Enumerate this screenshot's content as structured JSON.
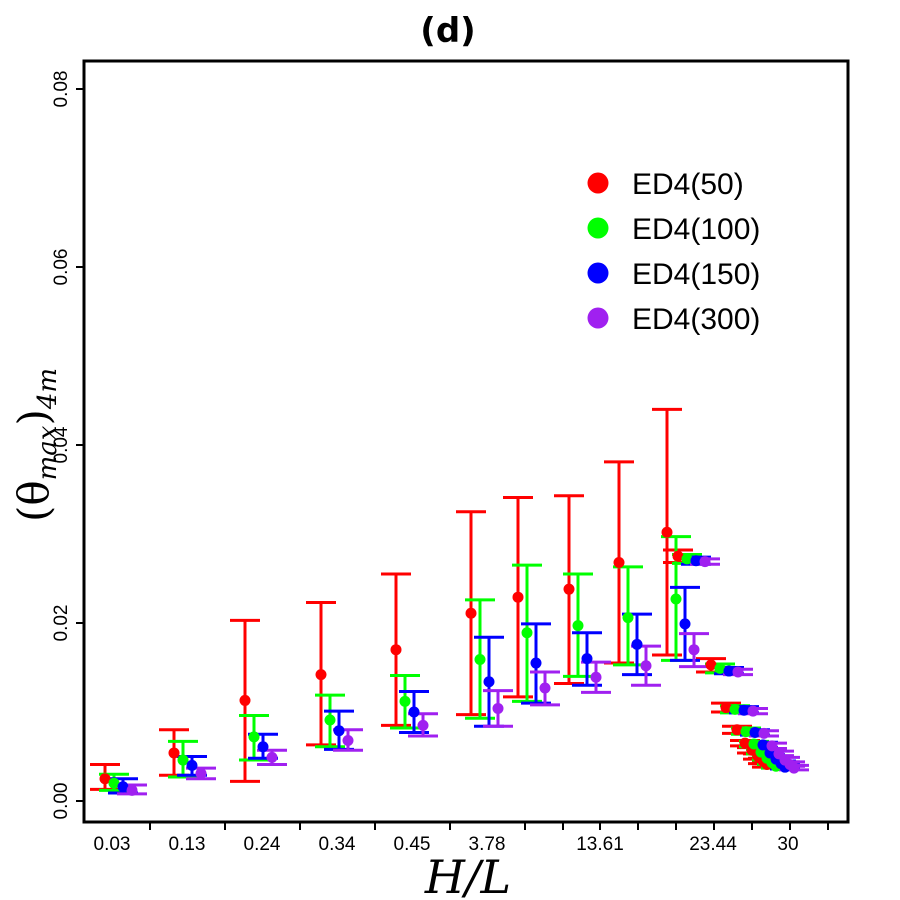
{
  "chart_data": {
    "type": "scatter",
    "title": "(d)",
    "xlabel": "H/L",
    "ylabel": {
      "main": "(θ",
      "sub1": "max",
      "close": ")",
      "sub2": "4m"
    },
    "x_tick_labels": [
      "0.03",
      "0.13",
      "0.24",
      "0.34",
      "0.45",
      "3.78",
      "13.61",
      "23.44",
      "30"
    ],
    "y_ticks": [
      0.0,
      0.02,
      0.04,
      0.06,
      0.08
    ],
    "y_tick_labels": [
      "0.00",
      "0.02",
      "0.04",
      "0.06",
      "0.08"
    ],
    "ylim": [
      0.0,
      0.082
    ],
    "legend_position": "top-right",
    "error_bars": true,
    "series": [
      {
        "name": "ED4(50)",
        "color": "#ff0000",
        "points": [
          {
            "y": 0.0025,
            "lo": 0.0013,
            "hi": 0.0041
          },
          {
            "y": 0.0054,
            "lo": 0.0029,
            "hi": 0.008
          },
          {
            "y": 0.0113,
            "lo": 0.0022,
            "hi": 0.0203
          },
          {
            "y": 0.0142,
            "lo": 0.0063,
            "hi": 0.0223
          },
          {
            "y": 0.017,
            "lo": 0.0085,
            "hi": 0.0255
          },
          {
            "y": 0.0211,
            "lo": 0.0097,
            "hi": 0.0325
          },
          {
            "y": 0.0229,
            "lo": 0.0117,
            "hi": 0.0341
          },
          {
            "y": 0.0238,
            "lo": 0.0132,
            "hi": 0.0343
          },
          {
            "y": 0.0268,
            "lo": 0.0155,
            "hi": 0.0381
          },
          {
            "y": 0.0302,
            "lo": 0.0164,
            "hi": 0.044
          },
          {
            "y": 0.0275,
            "lo": 0.0268,
            "hi": 0.0282
          },
          {
            "y": 0.0153,
            "lo": 0.0145,
            "hi": 0.016
          },
          {
            "y": 0.0105,
            "lo": 0.01,
            "hi": 0.011
          },
          {
            "y": 0.008,
            "lo": 0.0076,
            "hi": 0.0084
          },
          {
            "y": 0.0065,
            "lo": 0.0062,
            "hi": 0.0068
          },
          {
            "y": 0.0057,
            "lo": 0.0054,
            "hi": 0.006
          },
          {
            "y": 0.005,
            "lo": 0.0047,
            "hi": 0.0053
          },
          {
            "y": 0.0045,
            "lo": 0.0042,
            "hi": 0.0048
          },
          {
            "y": 0.0041,
            "lo": 0.0038,
            "hi": 0.0044
          }
        ]
      },
      {
        "name": "ED4(100)",
        "color": "#00ff00",
        "points": [
          {
            "y": 0.002,
            "lo": 0.0012,
            "hi": 0.003
          },
          {
            "y": 0.0046,
            "lo": 0.0027,
            "hi": 0.0067
          },
          {
            "y": 0.0072,
            "lo": 0.0046,
            "hi": 0.0096
          },
          {
            "y": 0.0091,
            "lo": 0.0061,
            "hi": 0.0119
          },
          {
            "y": 0.0112,
            "lo": 0.0082,
            "hi": 0.0141
          },
          {
            "y": 0.0159,
            "lo": 0.0093,
            "hi": 0.0226
          },
          {
            "y": 0.0189,
            "lo": 0.0112,
            "hi": 0.0265
          },
          {
            "y": 0.0197,
            "lo": 0.014,
            "hi": 0.0255
          },
          {
            "y": 0.0206,
            "lo": 0.0153,
            "hi": 0.0263
          },
          {
            "y": 0.0227,
            "lo": 0.0158,
            "hi": 0.0297
          },
          {
            "y": 0.0272,
            "lo": 0.0267,
            "hi": 0.0277
          },
          {
            "y": 0.0149,
            "lo": 0.0144,
            "hi": 0.0154
          },
          {
            "y": 0.0103,
            "lo": 0.0099,
            "hi": 0.0107
          },
          {
            "y": 0.0078,
            "lo": 0.0075,
            "hi": 0.0082
          },
          {
            "y": 0.0064,
            "lo": 0.0061,
            "hi": 0.0067
          },
          {
            "y": 0.0055,
            "lo": 0.0053,
            "hi": 0.0058
          },
          {
            "y": 0.0048,
            "lo": 0.0046,
            "hi": 0.0051
          },
          {
            "y": 0.0043,
            "lo": 0.0041,
            "hi": 0.0046
          },
          {
            "y": 0.0039,
            "lo": 0.0037,
            "hi": 0.0042
          }
        ]
      },
      {
        "name": "ED4(150)",
        "color": "#0000ff",
        "points": [
          {
            "y": 0.0016,
            "lo": 0.0009,
            "hi": 0.0025
          },
          {
            "y": 0.004,
            "lo": 0.0029,
            "hi": 0.005
          },
          {
            "y": 0.0061,
            "lo": 0.0048,
            "hi": 0.0075
          },
          {
            "y": 0.0079,
            "lo": 0.0058,
            "hi": 0.0101
          },
          {
            "y": 0.01,
            "lo": 0.0077,
            "hi": 0.0123
          },
          {
            "y": 0.0134,
            "lo": 0.0084,
            "hi": 0.0184
          },
          {
            "y": 0.0155,
            "lo": 0.011,
            "hi": 0.0199
          },
          {
            "y": 0.016,
            "lo": 0.013,
            "hi": 0.0189
          },
          {
            "y": 0.0176,
            "lo": 0.0142,
            "hi": 0.021
          },
          {
            "y": 0.0199,
            "lo": 0.0158,
            "hi": 0.024
          },
          {
            "y": 0.027,
            "lo": 0.0266,
            "hi": 0.0274
          },
          {
            "y": 0.0146,
            "lo": 0.0143,
            "hi": 0.015
          },
          {
            "y": 0.0102,
            "lo": 0.0099,
            "hi": 0.0106
          },
          {
            "y": 0.0077,
            "lo": 0.0074,
            "hi": 0.008
          },
          {
            "y": 0.0063,
            "lo": 0.006,
            "hi": 0.0066
          },
          {
            "y": 0.0054,
            "lo": 0.0052,
            "hi": 0.0057
          },
          {
            "y": 0.0047,
            "lo": 0.0045,
            "hi": 0.005
          },
          {
            "y": 0.0042,
            "lo": 0.004,
            "hi": 0.0045
          },
          {
            "y": 0.0038,
            "lo": 0.0036,
            "hi": 0.0041
          }
        ]
      },
      {
        "name": "ED4(300)",
        "color": "#a020f0",
        "points": [
          {
            "y": 0.0012,
            "lo": 0.0008,
            "hi": 0.0018
          },
          {
            "y": 0.0031,
            "lo": 0.0025,
            "hi": 0.0037
          },
          {
            "y": 0.0049,
            "lo": 0.0041,
            "hi": 0.0057
          },
          {
            "y": 0.0068,
            "lo": 0.0057,
            "hi": 0.008
          },
          {
            "y": 0.0085,
            "lo": 0.0073,
            "hi": 0.0098
          },
          {
            "y": 0.0104,
            "lo": 0.0084,
            "hi": 0.0124
          },
          {
            "y": 0.0127,
            "lo": 0.0108,
            "hi": 0.0145
          },
          {
            "y": 0.0139,
            "lo": 0.0122,
            "hi": 0.0156
          },
          {
            "y": 0.0152,
            "lo": 0.013,
            "hi": 0.0174
          },
          {
            "y": 0.017,
            "lo": 0.0151,
            "hi": 0.0188
          },
          {
            "y": 0.0269,
            "lo": 0.0266,
            "hi": 0.0272
          },
          {
            "y": 0.0145,
            "lo": 0.0142,
            "hi": 0.0148
          },
          {
            "y": 0.0101,
            "lo": 0.0098,
            "hi": 0.0104
          },
          {
            "y": 0.0076,
            "lo": 0.0073,
            "hi": 0.0079
          },
          {
            "y": 0.0062,
            "lo": 0.0059,
            "hi": 0.0065
          },
          {
            "y": 0.0053,
            "lo": 0.0051,
            "hi": 0.0056
          },
          {
            "y": 0.0046,
            "lo": 0.0044,
            "hi": 0.0049
          },
          {
            "y": 0.0041,
            "lo": 0.0039,
            "hi": 0.0044
          },
          {
            "y": 0.0037,
            "lo": 0.0035,
            "hi": 0.004
          }
        ]
      }
    ]
  }
}
